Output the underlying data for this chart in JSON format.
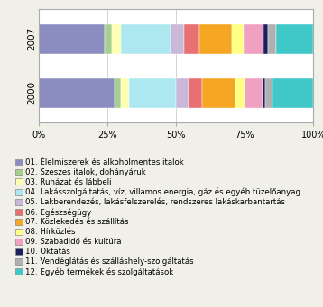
{
  "years": [
    "2007",
    "2000"
  ],
  "categories": [
    "01. Élelmiszerek és alkoholmentes italok",
    "02. Szeszes italok, dohányáruk",
    "03. Ruházat és lábbeli",
    "04. Lakásszolgáltatás, víz, villamos energia, gáz és egyéb tüzelőanyag",
    "05. Lakberendezés, lakásfelszerelés, rendszeres lakáskarbantartás",
    "06. Egészségügy",
    "07. Közlekedés és szállítás",
    "08. Hírközlés",
    "09. Szabadidő és kultúra",
    "10. Oktatás",
    "11. Vendéglátás és szálláshely-szolgáltatás",
    "12. Egyéb termékek és szolgáltatások"
  ],
  "colors": [
    "#8B8DC0",
    "#A8D08D",
    "#FFFFB3",
    "#ADE8F0",
    "#C9B8D8",
    "#E87070",
    "#F5A623",
    "#FFFE85",
    "#F0A0C0",
    "#1A2060",
    "#B0B0B0",
    "#40C8C8"
  ],
  "data_2007": [
    24.0,
    2.5,
    3.5,
    18.0,
    5.0,
    5.5,
    12.0,
    4.0,
    7.5,
    1.5,
    3.0,
    13.5
  ],
  "data_2000": [
    27.5,
    2.5,
    3.0,
    17.0,
    4.5,
    5.0,
    12.0,
    3.5,
    6.5,
    1.0,
    2.5,
    15.0
  ],
  "background_color": "#F0EFE8",
  "plot_background": "#FFFFFF",
  "tick_labels": [
    "0%",
    "25%",
    "50%",
    "75%",
    "100%"
  ],
  "legend_fontsize": 6.2,
  "bar_height": 0.55
}
